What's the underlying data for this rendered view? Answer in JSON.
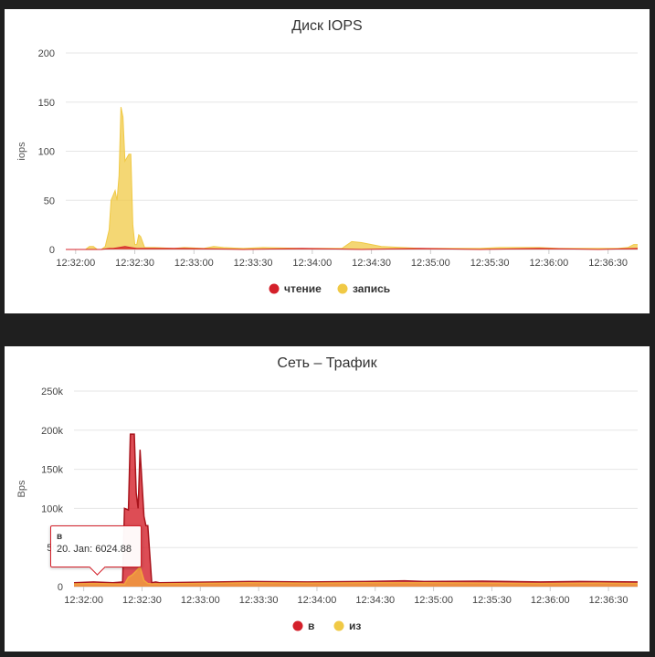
{
  "colors": {
    "red": "#d4202a",
    "yellow": "#f0c945",
    "orange": "#f2a53c"
  },
  "chart_data": [
    {
      "type": "area",
      "title": "Диск IOPS",
      "xlabel": "",
      "ylabel": "iops",
      "ylim": [
        0,
        200
      ],
      "yticks": [
        "0",
        "50",
        "100",
        "150",
        "200"
      ],
      "xticks": [
        "12:32:00",
        "12:32:30",
        "12:33:00",
        "12:33:30",
        "12:34:00",
        "12:34:30",
        "12:35:00",
        "12:35:30",
        "12:36:00",
        "12:36:30"
      ],
      "xrange_seconds": [
        0,
        290
      ],
      "legend": "bottom-center",
      "grid": true,
      "series": [
        {
          "name": "чтение",
          "color": "#d4202a",
          "x": [
            0,
            15,
            18,
            22,
            24,
            27,
            30,
            33,
            36,
            40,
            60,
            90,
            120,
            150,
            180,
            210,
            240,
            270,
            290
          ],
          "values": [
            0,
            0,
            0,
            1,
            1,
            2,
            3,
            2,
            1,
            1,
            1,
            0,
            1,
            0,
            1,
            0,
            1,
            0,
            1
          ]
        },
        {
          "name": "запись",
          "color": "#f0c945",
          "x": [
            0,
            10,
            12,
            14,
            16,
            18,
            20,
            22,
            23,
            24,
            25,
            26,
            27,
            28,
            29,
            30,
            32,
            33,
            34,
            35,
            36,
            37,
            38,
            40,
            45,
            55,
            60,
            70,
            75,
            80,
            90,
            100,
            120,
            140,
            145,
            150,
            160,
            180,
            200,
            210,
            220,
            240,
            250,
            260,
            270,
            280,
            285,
            288,
            290
          ],
          "values": [
            0,
            0,
            3,
            3,
            0,
            0,
            3,
            20,
            50,
            55,
            60,
            50,
            75,
            145,
            135,
            90,
            97,
            97,
            25,
            5,
            5,
            15,
            13,
            2,
            2,
            1,
            2,
            1,
            3,
            2,
            1,
            2,
            1,
            1,
            8,
            7,
            3,
            1,
            1,
            1,
            2,
            2,
            1,
            1,
            1,
            1,
            2,
            5,
            5
          ]
        }
      ]
    },
    {
      "type": "area",
      "title": "Сеть – Трафик",
      "xlabel": "",
      "ylabel": "Bps",
      "ylim": [
        0,
        250000
      ],
      "yticks": [
        "0",
        "50k",
        "100k",
        "150k",
        "200k",
        "250k"
      ],
      "xticks": [
        "12:32:00",
        "12:32:30",
        "12:33:00",
        "12:33:30",
        "12:34:00",
        "12:34:30",
        "12:35:00",
        "12:35:30",
        "12:36:00",
        "12:36:30"
      ],
      "xrange_seconds": [
        0,
        290
      ],
      "legend": "bottom-center",
      "grid": true,
      "series": [
        {
          "name": "в",
          "color": "#d4202a",
          "x": [
            0,
            10,
            20,
            25,
            26,
            28,
            29,
            31,
            32,
            33,
            34,
            36,
            37,
            38,
            40,
            42,
            44,
            60,
            90,
            120,
            150,
            170,
            180,
            210,
            240,
            260,
            290
          ],
          "values": [
            5000,
            6000,
            5000,
            6000,
            100000,
            98000,
            195000,
            195000,
            120000,
            100000,
            175000,
            90000,
            78000,
            78000,
            5000,
            6000,
            5000,
            5500,
            6500,
            6000,
            6500,
            7500,
            6500,
            7000,
            6000,
            6500,
            6000
          ]
        },
        {
          "name": "из",
          "color": "#f2a53c",
          "x": [
            0,
            10,
            20,
            26,
            28,
            30,
            32,
            34,
            36,
            38,
            40,
            60,
            90,
            120,
            150,
            180,
            210,
            240,
            270,
            290
          ],
          "values": [
            3500,
            4000,
            3500,
            3000,
            12000,
            15000,
            20000,
            25000,
            8000,
            4000,
            3500,
            4000,
            5000,
            4500,
            5000,
            5000,
            4500,
            4000,
            4500,
            4000
          ]
        }
      ]
    }
  ],
  "tooltip": {
    "title": "в",
    "text": "20. Jan: 6024.88"
  }
}
